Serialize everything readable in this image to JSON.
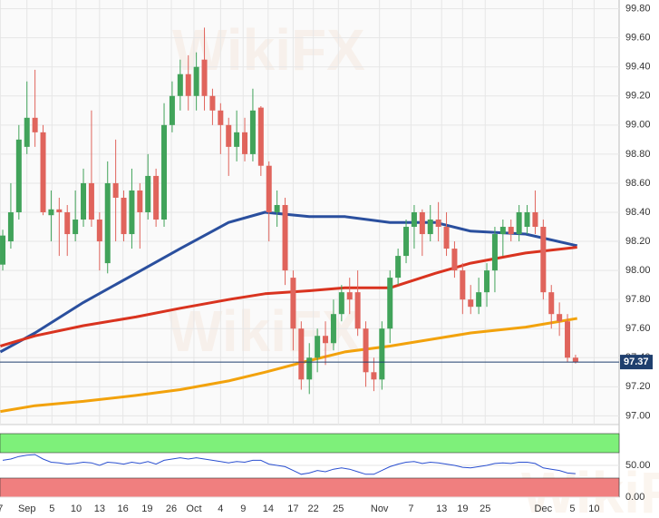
{
  "chart_data": {
    "type": "candlestick",
    "watermark": "WikiFX",
    "xlim": [
      -0.34,
      76.4
    ],
    "ylim": [
      96.94,
      99.86
    ],
    "grid": true,
    "up_color": "#41a35a",
    "down_color": "#e0645c",
    "yticks": [
      {
        "value": 97.0,
        "label": "97.00"
      },
      {
        "value": 97.2,
        "label": "97.20"
      },
      {
        "value": 97.4,
        "label": "97.40"
      },
      {
        "value": 97.6,
        "label": "97.60"
      },
      {
        "value": 97.8,
        "label": "97.80"
      },
      {
        "value": 98.0,
        "label": "98.00"
      },
      {
        "value": 98.2,
        "label": "98.20"
      },
      {
        "value": 98.4,
        "label": "98.40"
      },
      {
        "value": 98.6,
        "label": "98.60"
      },
      {
        "value": 98.8,
        "label": "98.80"
      },
      {
        "value": 99.0,
        "label": "99.00"
      },
      {
        "value": 99.2,
        "label": "99.20"
      },
      {
        "value": 99.4,
        "label": "99.40"
      },
      {
        "value": 99.6,
        "label": "99.60"
      },
      {
        "value": 99.8,
        "label": "99.80"
      }
    ],
    "xticks": [
      {
        "value": -0.3,
        "label": "7"
      },
      {
        "value": 3.0,
        "label": "Sep"
      },
      {
        "value": 6.1,
        "label": "5"
      },
      {
        "value": 9.1,
        "label": "10"
      },
      {
        "value": 12.0,
        "label": "13"
      },
      {
        "value": 14.9,
        "label": "16"
      },
      {
        "value": 17.9,
        "label": "19"
      },
      {
        "value": 20.9,
        "label": "26"
      },
      {
        "value": 23.7,
        "label": "Oct"
      },
      {
        "value": 27.0,
        "label": "4"
      },
      {
        "value": 29.8,
        "label": "9"
      },
      {
        "value": 32.9,
        "label": "14"
      },
      {
        "value": 36.0,
        "label": "17"
      },
      {
        "value": 38.5,
        "label": "22"
      },
      {
        "value": 41.6,
        "label": "25"
      },
      {
        "value": 46.7,
        "label": "Nov"
      },
      {
        "value": 50.6,
        "label": "7"
      },
      {
        "value": 54.4,
        "label": "13"
      },
      {
        "value": 57.0,
        "label": "19"
      },
      {
        "value": 59.8,
        "label": "25"
      },
      {
        "value": 67.0,
        "label": "Dec"
      },
      {
        "value": 70.6,
        "label": "5"
      },
      {
        "value": 73.3,
        "label": "10"
      }
    ],
    "open": [
      98.04,
      98.2,
      98.4,
      98.85,
      99.05,
      98.95,
      98.38,
      98.42,
      98.4,
      98.25,
      98.35,
      98.6,
      98.35,
      98.05,
      98.6,
      98.5,
      98.25,
      98.55,
      98.4,
      98.65,
      98.35,
      99.0,
      99.2,
      99.35,
      99.2,
      99.45,
      99.2,
      99.1,
      99.0,
      98.85,
      98.95,
      98.8,
      99.12,
      98.72,
      98.4,
      98.45,
      97.95,
      97.6,
      97.25,
      97.4,
      97.55,
      97.5,
      97.7,
      97.85,
      97.85,
      97.6,
      97.3,
      97.25,
      97.6,
      97.95,
      98.1,
      98.3,
      98.4,
      98.25,
      98.35,
      98.3,
      98.15,
      98.0,
      97.8,
      97.75,
      97.85,
      98.0,
      98.25,
      98.3,
      98.25,
      98.3,
      98.4,
      98.3,
      97.85,
      97.7,
      97.65,
      97.4
    ],
    "high": [
      98.28,
      98.6,
      99.0,
      99.3,
      99.38,
      99.0,
      98.55,
      98.5,
      98.45,
      98.55,
      98.7,
      99.1,
      98.4,
      98.75,
      98.9,
      98.55,
      98.7,
      98.6,
      98.8,
      98.7,
      99.15,
      99.3,
      99.45,
      99.48,
      99.5,
      99.67,
      99.25,
      99.15,
      99.05,
      99.1,
      99.05,
      99.25,
      99.13,
      98.75,
      98.55,
      98.5,
      98.0,
      97.65,
      97.5,
      97.6,
      97.65,
      97.8,
      97.9,
      97.95,
      98.0,
      97.65,
      97.4,
      97.65,
      98.0,
      98.15,
      98.35,
      98.45,
      98.42,
      98.45,
      98.47,
      98.4,
      98.2,
      98.05,
      97.9,
      97.95,
      98.05,
      98.3,
      98.35,
      98.35,
      98.45,
      98.45,
      98.55,
      98.35,
      97.9,
      97.78,
      97.7,
      97.42
    ],
    "low": [
      98.0,
      98.15,
      98.35,
      98.8,
      98.85,
      98.38,
      98.2,
      98.1,
      98.1,
      98.2,
      98.3,
      98.3,
      98.0,
      97.98,
      98.2,
      98.2,
      98.15,
      98.15,
      98.35,
      98.3,
      98.3,
      98.95,
      99.1,
      99.1,
      99.1,
      99.1,
      99.0,
      98.8,
      98.65,
      98.75,
      98.75,
      98.75,
      98.65,
      98.2,
      98.3,
      97.9,
      97.45,
      97.18,
      97.15,
      97.3,
      97.35,
      97.45,
      97.65,
      97.7,
      97.55,
      97.2,
      97.17,
      97.18,
      97.5,
      97.9,
      98.05,
      98.15,
      98.1,
      98.2,
      98.2,
      98.1,
      97.95,
      97.7,
      97.7,
      97.7,
      97.75,
      97.85,
      98.1,
      98.2,
      98.2,
      98.25,
      98.25,
      97.8,
      97.6,
      97.55,
      97.37,
      97.36
    ],
    "close": [
      98.24,
      98.4,
      98.9,
      99.05,
      98.95,
      98.4,
      98.42,
      98.4,
      98.25,
      98.35,
      98.6,
      98.35,
      98.2,
      98.6,
      98.5,
      98.25,
      98.55,
      98.4,
      98.65,
      98.35,
      99.0,
      99.2,
      99.35,
      99.2,
      99.4,
      99.2,
      99.1,
      99.0,
      98.85,
      98.95,
      98.8,
      99.1,
      98.72,
      98.4,
      98.45,
      98.0,
      97.6,
      97.25,
      97.4,
      97.55,
      97.5,
      97.7,
      97.85,
      97.8,
      97.6,
      97.3,
      97.25,
      97.6,
      97.95,
      98.1,
      98.3,
      98.4,
      98.25,
      98.35,
      98.3,
      98.15,
      98.0,
      97.8,
      97.75,
      97.85,
      98.0,
      98.25,
      98.3,
      98.25,
      98.4,
      98.4,
      98.3,
      97.85,
      97.7,
      97.65,
      97.4,
      97.37
    ],
    "lines": [
      {
        "color": "#2a4f9e",
        "x": [
          -0.3,
          4,
          10,
          16.5,
          22,
          28,
          32.5,
          38,
          42.4,
          48,
          53.6,
          58,
          64.8,
          71.2
        ],
        "values": [
          97.44,
          97.57,
          97.78,
          97.98,
          98.15,
          98.33,
          98.4,
          98.37,
          98.37,
          98.33,
          98.33,
          98.27,
          98.25,
          98.17
        ]
      },
      {
        "color": "#d9331f",
        "x": [
          -0.3,
          4,
          10,
          16.5,
          22,
          28,
          32.5,
          38,
          42.4,
          48,
          53.6,
          58,
          64.8,
          71.2
        ],
        "values": [
          97.48,
          97.55,
          97.62,
          97.68,
          97.74,
          97.8,
          97.84,
          97.86,
          97.88,
          97.88,
          97.98,
          98.05,
          98.12,
          98.16
        ]
      },
      {
        "color": "#f2a20c",
        "x": [
          -0.3,
          4,
          10,
          16.5,
          22,
          28,
          32.5,
          38,
          42.4,
          48,
          53.6,
          58,
          64.8,
          71.2
        ],
        "values": [
          97.03,
          97.07,
          97.1,
          97.14,
          97.18,
          97.24,
          97.3,
          97.38,
          97.44,
          97.48,
          97.53,
          97.57,
          97.61,
          97.67
        ]
      }
    ],
    "last_price": 97.37,
    "last_price_color": "#1f3f6e",
    "indicator": {
      "color": "#2a4fd0",
      "ylim": [
        0,
        100
      ],
      "yticks": [
        {
          "value": 0,
          "label": "0.00"
        },
        {
          "value": 50,
          "label": "50.00"
        }
      ],
      "bands": [
        {
          "from": 70,
          "to": 100,
          "color": "#7ef07a"
        },
        {
          "from": 0,
          "to": 30,
          "color": "#f07f7f"
        }
      ],
      "values": [
        58,
        60,
        64,
        66,
        67,
        60,
        55,
        54,
        52,
        53,
        55,
        54,
        50,
        55,
        54,
        52,
        55,
        53,
        56,
        52,
        58,
        60,
        62,
        60,
        62,
        60,
        58,
        56,
        54,
        56,
        55,
        58,
        58,
        52,
        50,
        48,
        42,
        36,
        38,
        42,
        40,
        44,
        46,
        44,
        40,
        36,
        36,
        42,
        48,
        52,
        55,
        56,
        53,
        55,
        54,
        52,
        50,
        47,
        46,
        48,
        50,
        53,
        54,
        53,
        55,
        55,
        53,
        46,
        44,
        42,
        38,
        37
      ]
    }
  }
}
